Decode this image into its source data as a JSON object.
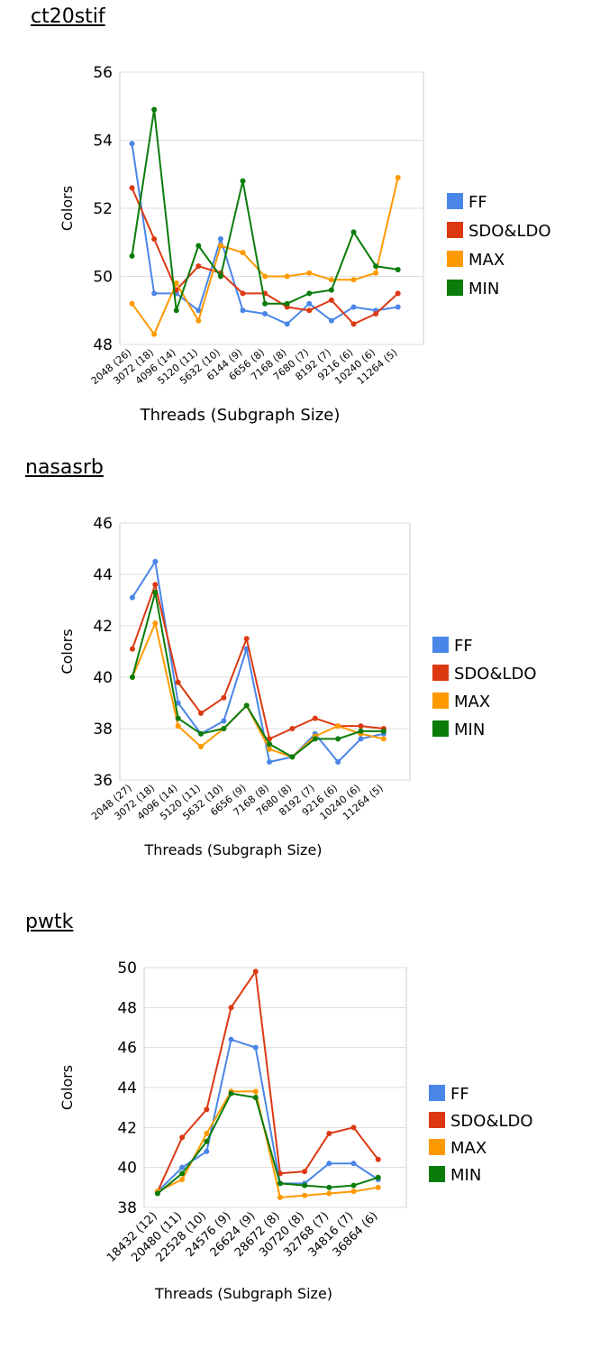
{
  "series_colors": {
    "FF": "#4a86e8",
    "SDO&LDO": "#dc3912",
    "MAX": "#ff9900",
    "MIN": "#0a7c0a"
  },
  "chart_data": [
    {
      "type": "line",
      "title": "ct20stif",
      "xlabel": "Threads (Subgraph Size)",
      "ylabel": "Colors",
      "ylim": [
        48,
        56
      ],
      "yticks": [
        48,
        50,
        52,
        54,
        56
      ],
      "grid": true,
      "legend_position": "right",
      "categories": [
        "2048 (26)",
        "3072 (18)",
        "4096 (14)",
        "5120 (11)",
        "5632 (10)",
        "6144 (9)",
        "6656 (8)",
        "7168 (8)",
        "7680 (7)",
        "8192 (7)",
        "9216 (6)",
        "10240 (6)",
        "11264 (5)"
      ],
      "series": [
        {
          "name": "FF",
          "values": [
            53.9,
            49.5,
            49.5,
            49.0,
            51.1,
            49.0,
            48.9,
            48.6,
            49.2,
            48.7,
            49.1,
            49.0,
            49.1
          ]
        },
        {
          "name": "SDO&LDO",
          "values": [
            52.6,
            51.1,
            49.6,
            50.3,
            50.1,
            49.5,
            49.5,
            49.1,
            49.0,
            49.3,
            48.6,
            48.9,
            49.5
          ]
        },
        {
          "name": "MAX",
          "values": [
            49.2,
            48.3,
            49.8,
            48.7,
            50.9,
            50.7,
            50.0,
            50.0,
            50.1,
            49.9,
            49.9,
            50.1,
            52.9
          ]
        },
        {
          "name": "MIN",
          "values": [
            50.6,
            54.9,
            49.0,
            50.9,
            50.0,
            52.8,
            49.2,
            49.2,
            49.5,
            49.6,
            51.3,
            50.3,
            50.2
          ]
        }
      ]
    },
    {
      "type": "line",
      "title": "nasasrb",
      "xlabel": "Threads (Subgraph Size)",
      "ylabel": "Colors",
      "ylim": [
        36,
        46
      ],
      "yticks": [
        36,
        38,
        40,
        42,
        44,
        46
      ],
      "grid": true,
      "legend_position": "right",
      "categories": [
        "2048 (27)",
        "3072 (18)",
        "4096 (14)",
        "5120 (11)",
        "5632 (10)",
        "6656 (9)",
        "7168 (8)",
        "7680 (8)",
        "8192 (7)",
        "9216 (6)",
        "10240 (6)",
        "11264 (5)"
      ],
      "series": [
        {
          "name": "FF",
          "values": [
            43.1,
            44.5,
            39.0,
            37.8,
            38.3,
            41.1,
            36.7,
            36.9,
            37.8,
            36.7,
            37.6,
            37.8
          ]
        },
        {
          "name": "SDO&LDO",
          "values": [
            41.1,
            43.6,
            39.8,
            38.6,
            39.2,
            41.5,
            37.6,
            38.0,
            38.4,
            38.1,
            38.1,
            38.0
          ]
        },
        {
          "name": "MAX",
          "values": [
            40.0,
            42.1,
            38.1,
            37.3,
            38.0,
            38.9,
            37.2,
            36.9,
            37.7,
            38.1,
            37.8,
            37.6
          ]
        },
        {
          "name": "MIN",
          "values": [
            40.0,
            43.3,
            38.4,
            37.8,
            38.0,
            38.9,
            37.4,
            36.9,
            37.6,
            37.6,
            37.9,
            37.9
          ]
        }
      ]
    },
    {
      "type": "line",
      "title": "pwtk",
      "xlabel": "Threads (Subgraph Size)",
      "ylabel": "Colors",
      "ylim": [
        38,
        50
      ],
      "yticks": [
        38,
        40,
        42,
        44,
        46,
        48,
        50
      ],
      "grid": true,
      "legend_position": "right",
      "categories": [
        "18432 (12)",
        "20480 (11)",
        "22528 (10)",
        "24576 (9)",
        "26624 (9)",
        "28672 (8)",
        "30720 (8)",
        "32768 (7)",
        "34816 (7)",
        "36864 (6)"
      ],
      "series": [
        {
          "name": "FF",
          "values": [
            38.8,
            40.0,
            40.8,
            46.4,
            46.0,
            39.2,
            39.2,
            40.2,
            40.2,
            39.4
          ]
        },
        {
          "name": "SDO&LDO",
          "values": [
            38.8,
            41.5,
            42.9,
            48.0,
            49.8,
            39.7,
            39.8,
            41.7,
            42.0,
            40.4
          ]
        },
        {
          "name": "MAX",
          "values": [
            38.8,
            39.4,
            41.7,
            43.8,
            43.8,
            38.5,
            38.6,
            38.7,
            38.8,
            39.0
          ]
        },
        {
          "name": "MIN",
          "values": [
            38.7,
            39.7,
            41.3,
            43.7,
            43.5,
            39.2,
            39.1,
            39.0,
            39.1,
            39.5
          ]
        }
      ]
    }
  ]
}
